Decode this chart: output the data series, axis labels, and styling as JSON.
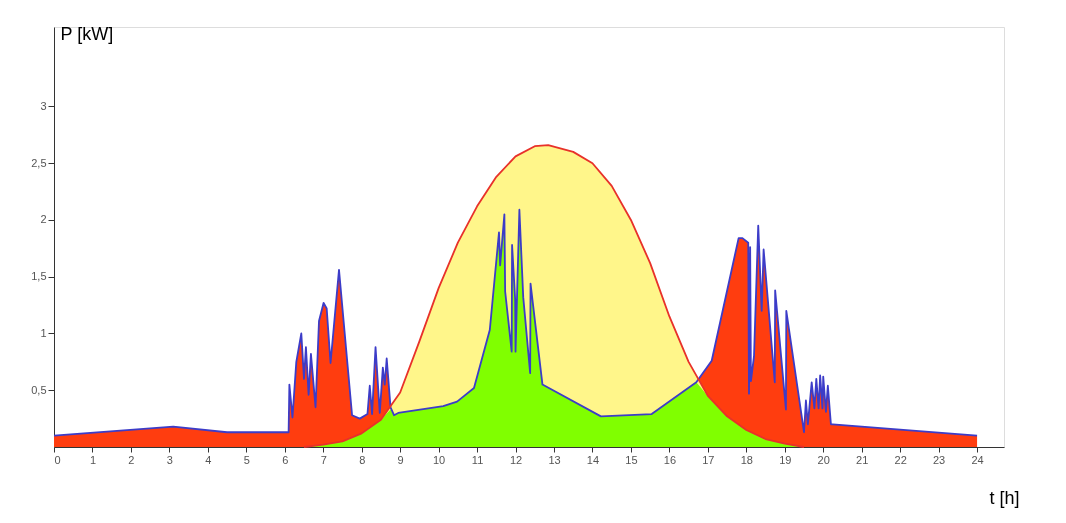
{
  "chart_data": {
    "type": "area",
    "xlabel": "t [h]",
    "ylabel": "P [kW]",
    "xlim": [
      0,
      24.7
    ],
    "ylim": [
      0,
      3.7
    ],
    "xticks": [
      0,
      1,
      2,
      3,
      4,
      5,
      6,
      7,
      8,
      9,
      10,
      11,
      12,
      13,
      14,
      15,
      16,
      17,
      18,
      19,
      20,
      21,
      22,
      23,
      24
    ],
    "yticks": [
      {
        "value": 0.5,
        "label": "0,5"
      },
      1,
      {
        "value": 1.5,
        "label": "1,5"
      },
      2,
      {
        "value": 2.5,
        "label": "2,5"
      },
      3
    ],
    "grid": false,
    "series": [
      {
        "color": "#ff3d0f",
        "x": [
          0,
          3.1,
          4.5,
          6.0,
          6.1,
          6.12,
          6.2,
          6.3,
          6.43,
          6.5,
          6.55,
          6.62,
          6.68,
          6.8,
          6.89,
          7.01,
          7.09,
          7.19,
          7.41,
          7.75,
          7.95,
          8.15,
          8.21,
          8.27,
          8.36,
          8.47,
          8.55,
          8.6,
          8.65,
          8.75,
          8.84,
          8.95,
          10.12,
          10.48,
          10.92,
          11.33,
          11.57,
          11.6,
          11.71,
          11.73,
          11.9,
          11.91,
          11.99,
          12.0,
          12.1,
          12.2,
          12.38,
          12.39,
          12.7,
          14.22,
          15.54,
          16.7,
          17.1,
          17.8,
          17.9,
          18.05,
          18.07,
          18.1,
          18.12,
          18.2,
          18.31,
          18.4,
          18.45,
          18.74,
          18.75,
          19.03,
          19.04,
          19.5,
          19.55,
          19.6,
          19.7,
          19.77,
          19.82,
          19.88,
          19.92,
          19.98,
          20.0,
          20.07,
          20.12,
          20.2,
          20.25,
          24
        ],
        "values": [
          0.1,
          0.18,
          0.13,
          0.13,
          0.13,
          0.55,
          0.26,
          0.75,
          1.0,
          0.6,
          0.88,
          0.46,
          0.82,
          0.35,
          1.11,
          1.27,
          1.22,
          0.74,
          1.56,
          0.28,
          0.25,
          0.29,
          0.54,
          0.29,
          0.88,
          0.3,
          0.7,
          0.55,
          0.78,
          0.35,
          null,
          null,
          null,
          null,
          null,
          null,
          null,
          null,
          null,
          null,
          null,
          null,
          null,
          null,
          null,
          null,
          null,
          null,
          null,
          null,
          null,
          0.57,
          0.76,
          1.84,
          1.84,
          1.8,
          0.47,
          1.76,
          0.58,
          0.8,
          1.95,
          1.2,
          1.74,
          0.57,
          1.38,
          0.33,
          1.2,
          0.13,
          0.41,
          0.2,
          0.57,
          0.34,
          0.6,
          0.34,
          0.63,
          0.34,
          0.62,
          0.31,
          0.54,
          0.2,
          0.2,
          0.1
        ]
      },
      {
        "color": "#fff68a",
        "x": [
          8.5,
          9.0,
          9.5,
          10.0,
          10.5,
          11.0,
          11.5,
          12.0,
          12.5,
          12.85,
          13.5,
          14.0,
          14.5,
          15.0,
          15.5,
          16.0,
          16.5,
          17.0
        ],
        "values": [
          0.24,
          0.48,
          0.93,
          1.4,
          1.8,
          2.12,
          2.38,
          2.56,
          2.65,
          2.66,
          2.6,
          2.5,
          2.3,
          2.0,
          1.62,
          1.15,
          0.75,
          0.45
        ]
      },
      {
        "color": "#80ff00",
        "x": [
          6.5,
          7.0,
          7.5,
          8.0,
          8.5,
          8.75,
          8.84,
          8.95,
          10.12,
          10.48,
          10.92,
          11.33,
          11.57,
          11.6,
          11.71,
          11.73,
          11.9,
          11.91,
          11.99,
          12.0,
          12.1,
          12.2,
          12.38,
          12.39,
          12.7,
          14.22,
          15.54,
          16.7,
          17.0,
          17.5,
          18.0,
          18.5,
          19.0,
          19.5
        ],
        "values": [
          0,
          0.02,
          0.05,
          0.12,
          0.24,
          0.33,
          0.28,
          0.3,
          0.36,
          0.4,
          0.52,
          1.03,
          1.89,
          1.6,
          2.05,
          1.37,
          0.84,
          1.78,
          1.3,
          0.84,
          2.09,
          1.32,
          0.65,
          1.44,
          0.55,
          0.27,
          0.29,
          0.57,
          0.45,
          0.27,
          0.15,
          0.07,
          0.03,
          0
        ]
      },
      {
        "type": "line",
        "color": "#e8312a",
        "x": [
          6.5,
          7.0,
          7.5,
          8.0,
          8.5,
          9.0,
          9.5,
          10.0,
          10.5,
          11.0,
          11.5,
          12.0,
          12.5,
          12.85,
          13.5,
          14.0,
          14.5,
          15.0,
          15.5,
          16.0,
          16.5,
          17.0,
          17.5,
          18.0,
          18.5,
          19.0,
          19.5
        ],
        "values": [
          0,
          0.02,
          0.05,
          0.12,
          0.24,
          0.48,
          0.93,
          1.4,
          1.8,
          2.12,
          2.38,
          2.56,
          2.65,
          2.66,
          2.6,
          2.5,
          2.3,
          2.0,
          1.62,
          1.15,
          0.75,
          0.45,
          0.27,
          0.15,
          0.07,
          0.03,
          0
        ]
      },
      {
        "type": "line",
        "color": "#3c3cc8",
        "x": [
          0,
          3.1,
          4.5,
          6.0,
          6.1,
          6.12,
          6.2,
          6.3,
          6.43,
          6.5,
          6.55,
          6.62,
          6.68,
          6.8,
          6.89,
          7.01,
          7.09,
          7.19,
          7.41,
          7.75,
          7.95,
          8.15,
          8.21,
          8.27,
          8.36,
          8.47,
          8.55,
          8.6,
          8.65,
          8.75,
          8.84,
          8.95,
          10.12,
          10.48,
          10.92,
          11.33,
          11.57,
          11.6,
          11.71,
          11.73,
          11.9,
          11.91,
          11.99,
          12.0,
          12.1,
          12.2,
          12.38,
          12.39,
          12.7,
          14.22,
          15.54,
          16.7,
          17.1,
          17.8,
          17.9,
          18.05,
          18.07,
          18.1,
          18.12,
          18.2,
          18.31,
          18.4,
          18.45,
          18.74,
          18.75,
          19.03,
          19.04,
          19.5,
          19.55,
          19.6,
          19.7,
          19.77,
          19.82,
          19.88,
          19.92,
          19.98,
          20.0,
          20.07,
          20.12,
          20.2,
          20.25,
          24
        ],
        "values": [
          0.1,
          0.18,
          0.13,
          0.13,
          0.13,
          0.55,
          0.26,
          0.75,
          1.0,
          0.6,
          0.88,
          0.46,
          0.82,
          0.35,
          1.11,
          1.27,
          1.22,
          0.74,
          1.56,
          0.28,
          0.25,
          0.29,
          0.54,
          0.29,
          0.88,
          0.3,
          0.7,
          0.55,
          0.78,
          0.35,
          0.28,
          0.3,
          0.36,
          0.4,
          0.52,
          1.03,
          1.89,
          1.6,
          2.05,
          1.37,
          0.84,
          1.78,
          1.3,
          0.84,
          2.09,
          1.32,
          0.65,
          1.44,
          0.55,
          0.27,
          0.29,
          0.57,
          0.76,
          1.84,
          1.84,
          1.8,
          0.47,
          1.76,
          0.58,
          0.8,
          1.95,
          1.2,
          1.74,
          0.57,
          1.38,
          0.33,
          1.2,
          0.13,
          0.41,
          0.2,
          0.57,
          0.34,
          0.6,
          0.34,
          0.63,
          0.34,
          0.62,
          0.31,
          0.54,
          0.2,
          0.2,
          0.1
        ]
      }
    ]
  }
}
